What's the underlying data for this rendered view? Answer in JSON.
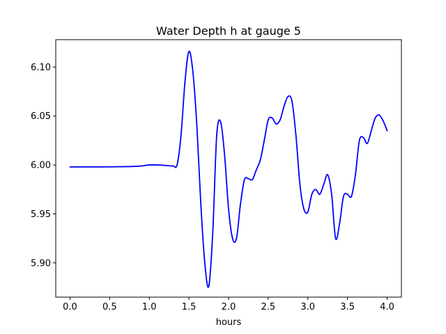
{
  "chart_data": {
    "type": "line",
    "title": "Water Depth h at gauge 5",
    "xlabel": "hours",
    "ylabel": "",
    "xlim": [
      -0.18,
      4.18
    ],
    "ylim": [
      5.865,
      6.128
    ],
    "xticks": [
      0.0,
      0.5,
      1.0,
      1.5,
      2.0,
      2.5,
      3.0,
      3.5,
      4.0
    ],
    "xtick_labels": [
      "0.0",
      "0.5",
      "1.0",
      "1.5",
      "2.0",
      "2.5",
      "3.0",
      "3.5",
      "4.0"
    ],
    "yticks": [
      5.9,
      5.95,
      6.0,
      6.05,
      6.1
    ],
    "ytick_labels": [
      "5.90",
      "5.95",
      "6.00",
      "6.05",
      "6.10"
    ],
    "grid": false,
    "series": [
      {
        "color": "#0000ff",
        "x": [
          0.0,
          0.2,
          0.4,
          0.6,
          0.8,
          0.9,
          1.0,
          1.1,
          1.2,
          1.3,
          1.35,
          1.4,
          1.45,
          1.5,
          1.55,
          1.6,
          1.65,
          1.7,
          1.75,
          1.8,
          1.85,
          1.9,
          1.95,
          2.0,
          2.05,
          2.1,
          2.15,
          2.2,
          2.25,
          2.3,
          2.35,
          2.4,
          2.45,
          2.5,
          2.55,
          2.6,
          2.65,
          2.7,
          2.75,
          2.8,
          2.85,
          2.9,
          2.95,
          3.0,
          3.05,
          3.1,
          3.15,
          3.2,
          3.25,
          3.3,
          3.35,
          3.4,
          3.45,
          3.5,
          3.55,
          3.6,
          3.65,
          3.7,
          3.75,
          3.8,
          3.85,
          3.9,
          3.95,
          4.0
        ],
        "y": [
          5.998,
          5.998,
          5.998,
          5.9982,
          5.9985,
          5.999,
          6.0,
          6.0,
          5.9995,
          5.999,
          6.0,
          6.03,
          6.085,
          6.116,
          6.095,
          6.04,
          5.96,
          5.9,
          5.876,
          5.93,
          6.03,
          6.044,
          6.01,
          5.955,
          5.925,
          5.925,
          5.96,
          5.985,
          5.986,
          5.985,
          5.995,
          6.005,
          6.025,
          6.046,
          6.048,
          6.042,
          6.046,
          6.06,
          6.07,
          6.065,
          6.03,
          5.98,
          5.955,
          5.952,
          5.97,
          5.975,
          5.97,
          5.98,
          5.99,
          5.97,
          5.925,
          5.94,
          5.968,
          5.97,
          5.968,
          5.99,
          6.025,
          6.028,
          6.022,
          6.035,
          6.048,
          6.051,
          6.045,
          6.035
        ]
      }
    ]
  }
}
